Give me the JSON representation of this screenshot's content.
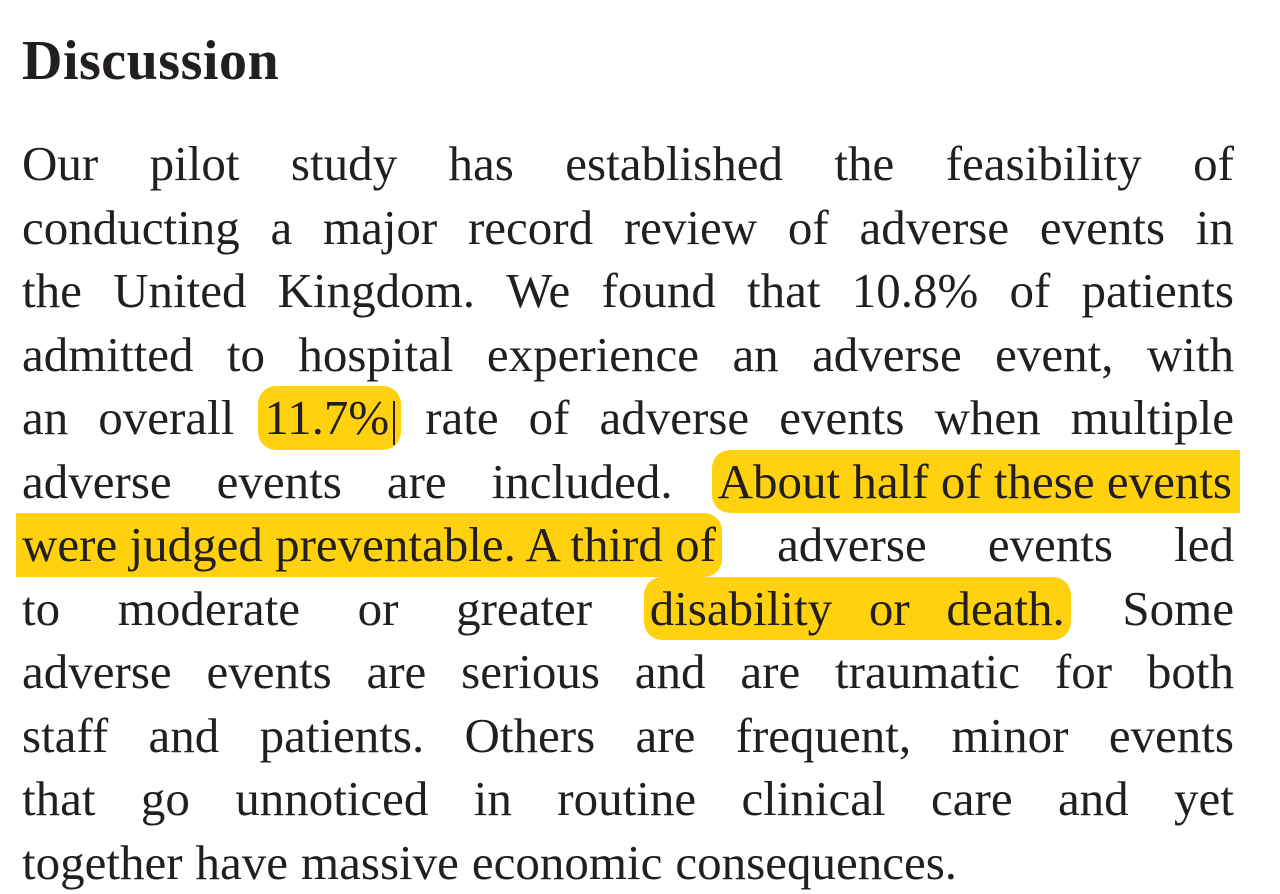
{
  "heading": "Discussion",
  "lines": [
    [
      "Our",
      "pilot",
      "study",
      "has",
      "established",
      "the",
      "feasibility",
      "of"
    ],
    [
      "conducting",
      "a",
      "major",
      "record",
      "review",
      "of",
      "adverse",
      "events",
      "in"
    ],
    [
      "the",
      "United",
      "Kingdom.",
      "We",
      "found",
      "that",
      "10.8%",
      "of",
      "patients"
    ],
    [
      "admitted",
      "to",
      "hospital",
      "experience",
      "an",
      "adverse",
      "event,",
      "with"
    ],
    [
      "an",
      "overall",
      "11.7%",
      "rate",
      "of",
      "adverse",
      "events",
      "when",
      "multiple"
    ],
    [
      "adverse",
      "events",
      "are",
      "included.",
      "About half of these events"
    ],
    [
      "were judged preventable. A third of",
      "adverse",
      "events",
      "led"
    ],
    [
      "to",
      "moderate",
      "or",
      "greater",
      "disability   or   death.",
      "Some"
    ],
    [
      "adverse",
      "events",
      "are",
      "serious",
      "and",
      "are",
      "traumatic",
      "for",
      "both"
    ],
    [
      "staff",
      "and",
      "patients.",
      "Others",
      "are",
      "frequent,",
      "minor",
      "events"
    ],
    [
      "that",
      "go",
      "unnoticed",
      "in",
      "routine",
      "clinical",
      "care",
      "and",
      "yet"
    ],
    [
      "together",
      "have",
      "massive",
      "economic",
      "consequences."
    ]
  ],
  "highlight_color": "#ffd10f",
  "highlights": [
    "11.7%",
    "About half of these events",
    "were judged preventable. A third of",
    "disability   or   death."
  ]
}
